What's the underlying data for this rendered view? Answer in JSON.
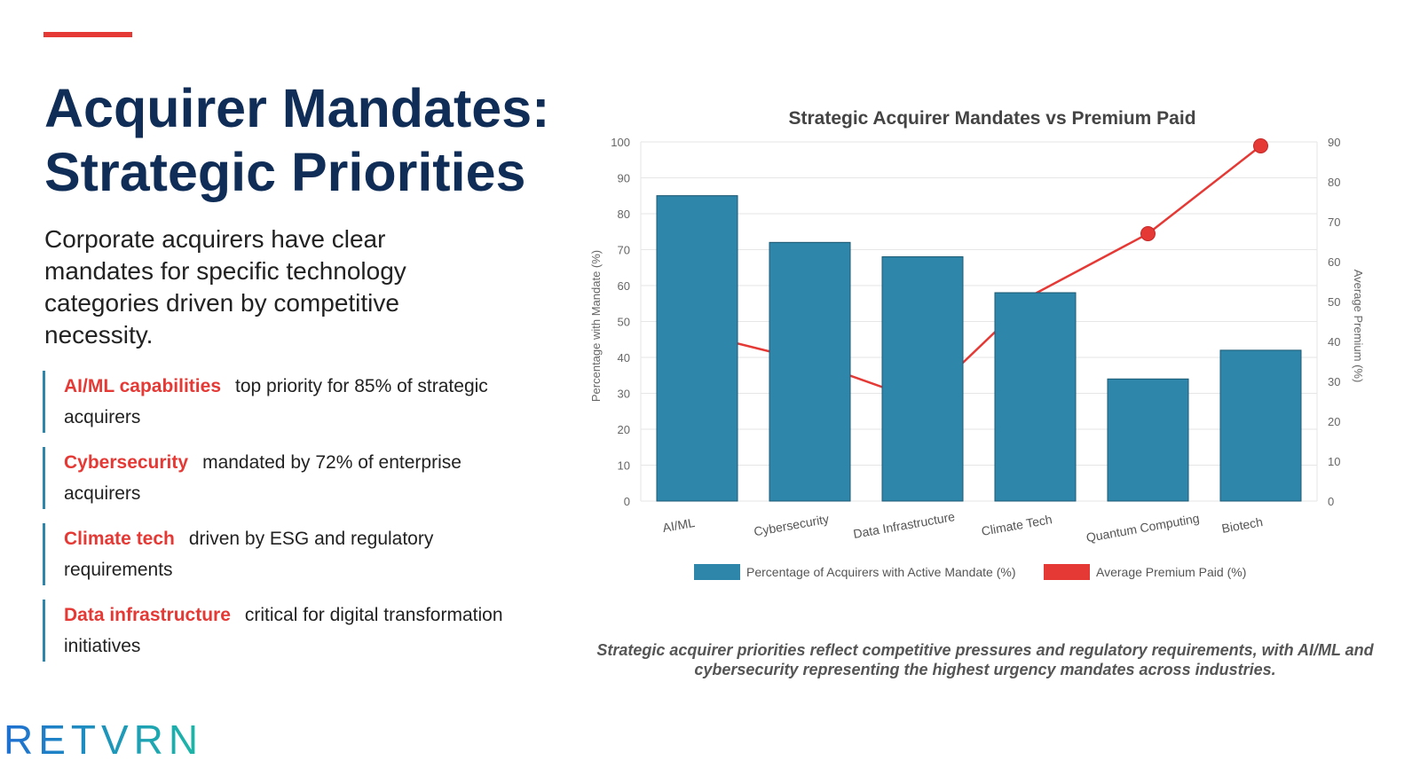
{
  "colors": {
    "accent": "#e53935",
    "title": "#0f2d57",
    "bar": "#2e86ab",
    "line": "#e53935",
    "logo": "#1db8a6"
  },
  "slide": {
    "title_line1": "Acquirer Mandates:",
    "title_line2": "Strategic Priorities",
    "intro": "Corporate acquirers have clear mandates for specific technology categories driven by competitive necessity.",
    "bullets": [
      {
        "emphasis": "AI/ML capabilities",
        "text": "top priority for 85% of strategic acquirers"
      },
      {
        "emphasis": "Cybersecurity",
        "text": "mandated by 72% of enterprise acquirers"
      },
      {
        "emphasis": "Climate tech",
        "text": "driven by ESG and regulatory requirements"
      },
      {
        "emphasis": "Data infrastructure",
        "text": "critical for digital transformation initiatives"
      }
    ],
    "caption": "Strategic acquirer priorities reflect competitive pressures and regulatory requirements, with AI/ML and cybersecurity representing the highest urgency mandates across industries.",
    "logo_text": "RETVRN"
  },
  "chart_data": {
    "type": "bar",
    "title": "Strategic Acquirer Mandates vs Premium Paid",
    "categories": [
      "AI/ML",
      "Cybersecurity",
      "Data Infrastructure",
      "Climate Tech",
      "Quantum Computing",
      "Biotech"
    ],
    "series": [
      {
        "name": "Percentage of Acquirers with Active Mandate (%)",
        "type": "bar",
        "axis": "left",
        "values": [
          85,
          72,
          68,
          58,
          34,
          42
        ]
      },
      {
        "name": "Average Premium Paid (%)",
        "type": "line",
        "axis": "right",
        "values": [
          42,
          35,
          25,
          52,
          67,
          89
        ]
      }
    ],
    "ylabel": "Percentage with Mandate (%)",
    "ylabel_right": "Average Premium (%)",
    "ylim": [
      0,
      100
    ],
    "ylim_right": [
      0,
      90
    ],
    "yticks": [
      0,
      10,
      20,
      30,
      40,
      50,
      60,
      70,
      80,
      90,
      100
    ],
    "yticks_right": [
      0,
      10,
      20,
      30,
      40,
      50,
      60,
      70,
      80,
      90
    ],
    "legend_position": "bottom"
  }
}
